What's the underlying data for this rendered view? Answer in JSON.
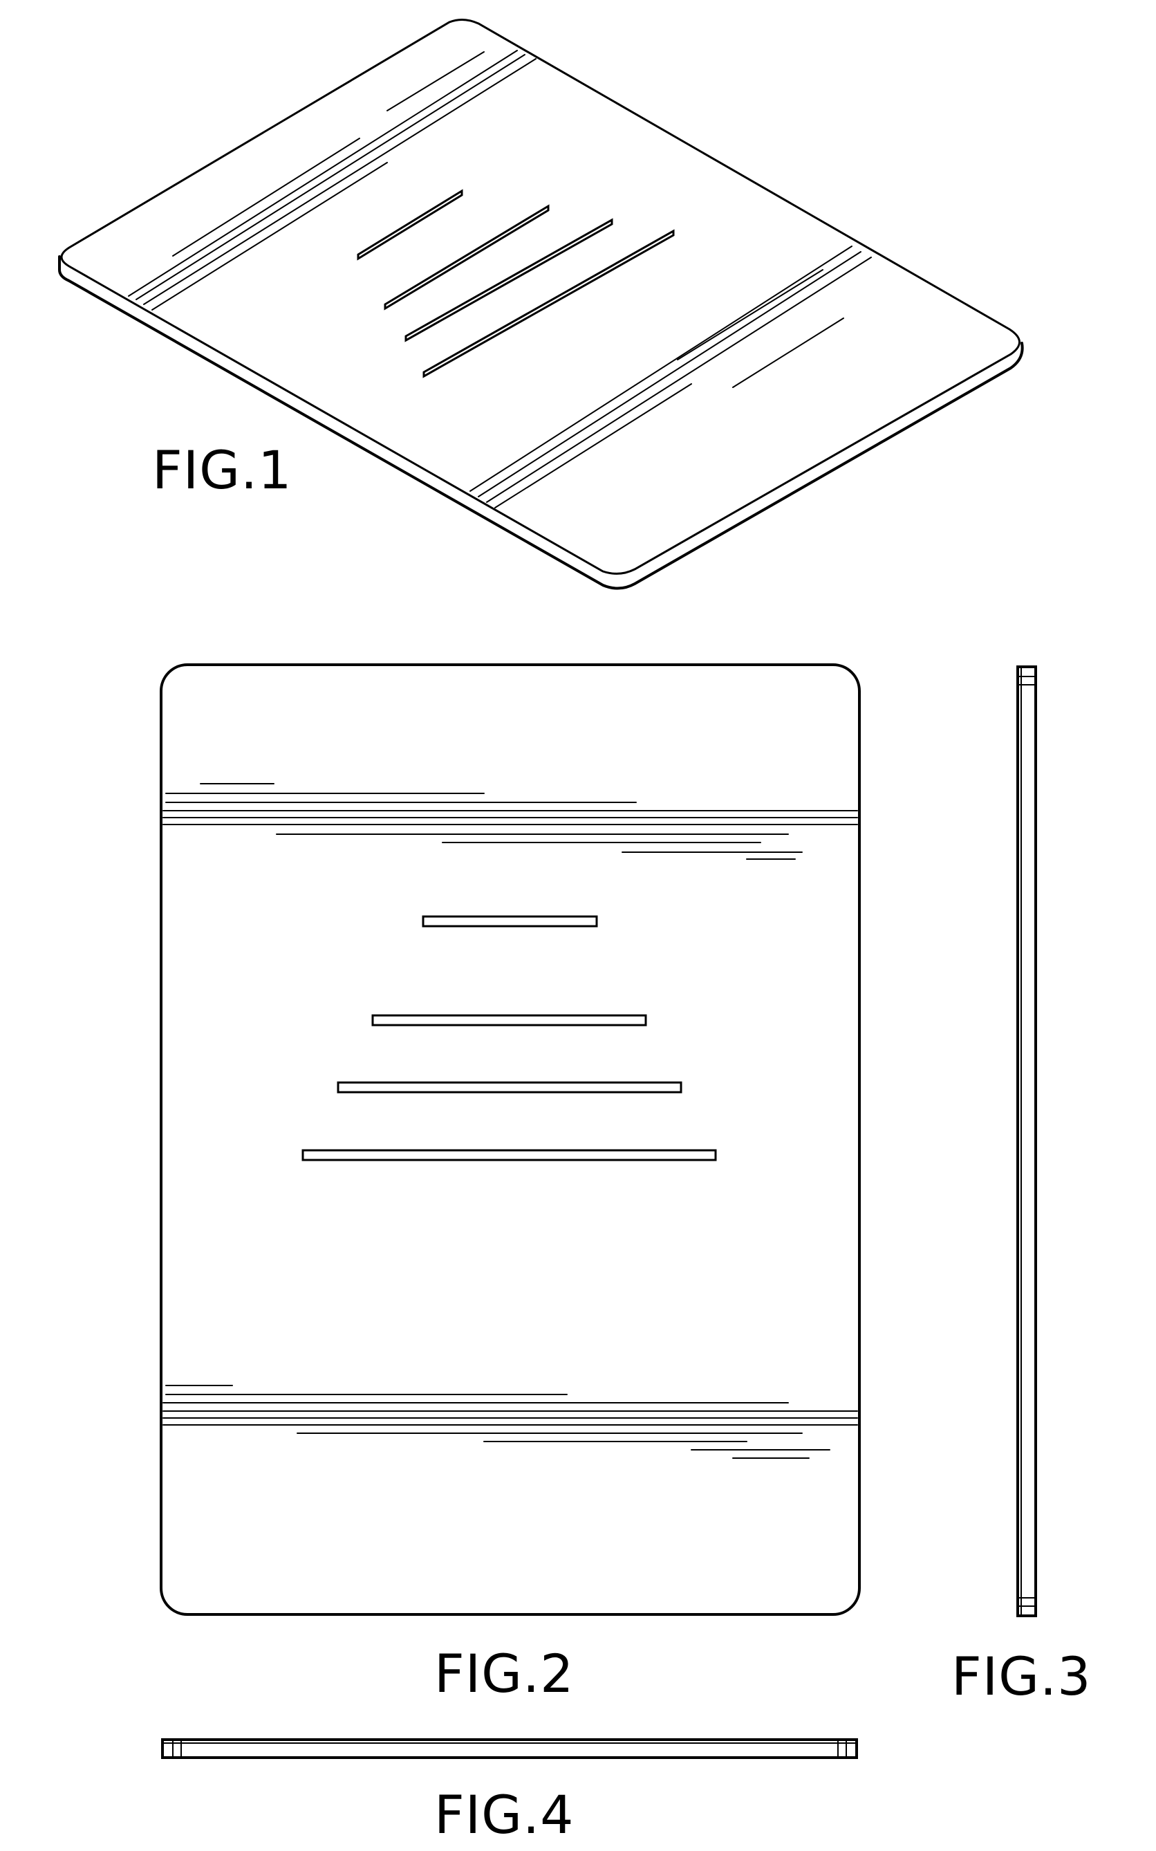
{
  "figures": {
    "fig1": {
      "label": "FIG.1"
    },
    "fig2": {
      "label": "FIG.2"
    },
    "fig3": {
      "label": "FIG.3"
    },
    "fig4": {
      "label": "FIG.4"
    }
  },
  "colors": {
    "ink": "#000000",
    "paper": "#ffffff"
  }
}
